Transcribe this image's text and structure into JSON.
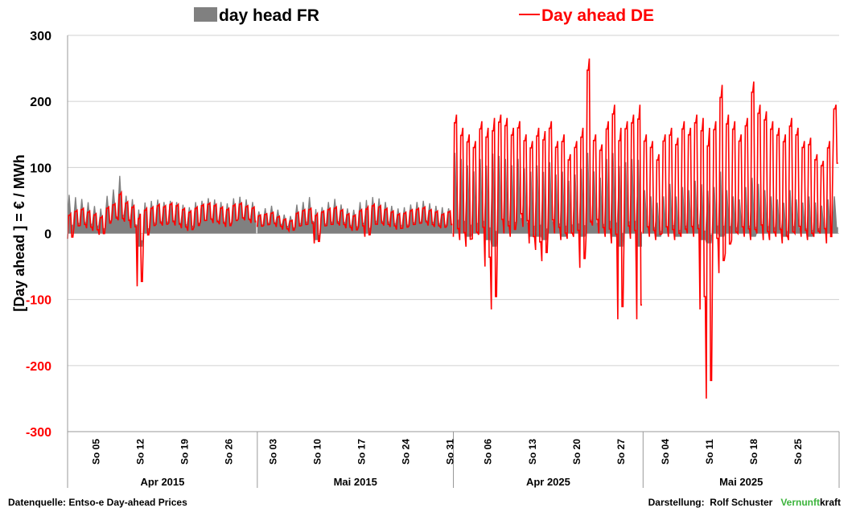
{
  "chart_data": {
    "type": "area+line",
    "ylabel": "[Day ahead ]  = € / MWh",
    "ylim": [
      -300,
      300
    ],
    "yticks": [
      300,
      200,
      100,
      0,
      -100,
      -200,
      -300
    ],
    "grid": true,
    "legend_position": "top",
    "series": [
      {
        "name": "day head FR",
        "kind": "area",
        "color": "#808080"
      },
      {
        "name": "Day ahead DE",
        "kind": "line",
        "color": "#ff0000"
      }
    ],
    "periods": [
      {
        "label": "Apr 2015",
        "days": 30,
        "weeks": [
          "So 05",
          "So 12",
          "So 19",
          "So 26"
        ],
        "first_sunday": 5
      },
      {
        "label": "Mai 2015",
        "days": 31,
        "weeks": [
          "So 03",
          "So 10",
          "So 17",
          "So 24",
          "So 31"
        ],
        "first_sunday": 3
      },
      {
        "label": "Apr 2025",
        "days": 30,
        "weeks": [
          "So 06",
          "So 13",
          "So 20",
          "So 27"
        ],
        "first_sunday": 6
      },
      {
        "label": "Mai 2025",
        "days": 31,
        "weeks": [
          "So 04",
          "So 11",
          "So 18",
          "So 25"
        ],
        "first_sunday": 4
      }
    ],
    "daily_points": {
      "Apr 2015": {
        "de_min": [
          -8,
          10,
          12,
          8,
          4,
          -2,
          14,
          22,
          20,
          18,
          8,
          -80,
          -5,
          10,
          14,
          12,
          16,
          12,
          8,
          4,
          10,
          18,
          20,
          16,
          14,
          10,
          18,
          22,
          20,
          16
        ],
        "de_max": [
          30,
          35,
          38,
          34,
          30,
          26,
          40,
          45,
          62,
          48,
          42,
          30,
          38,
          40,
          44,
          42,
          46,
          44,
          38,
          34,
          40,
          44,
          46,
          44,
          40,
          38,
          44,
          46,
          42,
          40
        ],
        "fr_min": [
          4,
          8,
          10,
          8,
          6,
          2,
          12,
          18,
          16,
          14,
          6,
          -20,
          0,
          10,
          12,
          12,
          14,
          10,
          8,
          6,
          10,
          14,
          16,
          14,
          12,
          10,
          14,
          18,
          16,
          14
        ],
        "fr_max": [
          62,
          58,
          55,
          50,
          44,
          40,
          60,
          70,
          92,
          60,
          55,
          40,
          50,
          52,
          54,
          50,
          52,
          50,
          46,
          42,
          50,
          52,
          56,
          54,
          50,
          48,
          56,
          58,
          54,
          50
        ]
      },
      "Mai 2015": {
        "de_min": [
          10,
          12,
          14,
          10,
          6,
          4,
          10,
          12,
          14,
          -15,
          10,
          12,
          14,
          12,
          8,
          4,
          10,
          -5,
          12,
          14,
          12,
          10,
          6,
          8,
          12,
          14,
          16,
          12,
          10,
          8,
          12
        ],
        "de_max": [
          28,
          30,
          32,
          26,
          22,
          20,
          32,
          36,
          38,
          30,
          34,
          38,
          40,
          36,
          30,
          28,
          36,
          40,
          44,
          42,
          38,
          34,
          30,
          32,
          36,
          38,
          40,
          36,
          34,
          30,
          34
        ],
        "fr_min": [
          10,
          12,
          12,
          10,
          8,
          6,
          10,
          12,
          12,
          -10,
          10,
          12,
          12,
          12,
          8,
          6,
          10,
          0,
          12,
          12,
          12,
          10,
          8,
          8,
          12,
          12,
          14,
          12,
          10,
          8,
          10
        ],
        "fr_max": [
          35,
          40,
          44,
          38,
          30,
          28,
          46,
          50,
          58,
          40,
          42,
          50,
          55,
          46,
          40,
          38,
          50,
          54,
          58,
          56,
          50,
          44,
          40,
          42,
          46,
          50,
          52,
          48,
          44,
          42,
          40
        ]
      },
      "Apr 2025": {
        "de_min": [
          -5,
          -10,
          -20,
          -8,
          -2,
          -50,
          -115,
          10,
          0,
          -5,
          20,
          10,
          -15,
          -25,
          -42,
          10,
          0,
          -10,
          -8,
          -5,
          -52,
          0,
          12,
          0,
          -5,
          -15,
          -130,
          0,
          -8,
          -130
        ],
        "de_max": [
          180,
          160,
          150,
          140,
          170,
          160,
          175,
          180,
          175,
          160,
          170,
          150,
          140,
          160,
          155,
          170,
          140,
          150,
          120,
          140,
          160,
          265,
          150,
          135,
          170,
          195,
          160,
          170,
          180,
          195
        ],
        "fr_min": [
          0,
          0,
          -5,
          0,
          0,
          -10,
          -20,
          0,
          0,
          0,
          5,
          0,
          -5,
          -5,
          -10,
          0,
          0,
          -5,
          0,
          0,
          -5,
          0,
          0,
          0,
          0,
          -5,
          -20,
          0,
          0,
          -20
        ],
        "fr_max": [
          130,
          120,
          110,
          100,
          120,
          110,
          130,
          125,
          120,
          110,
          120,
          105,
          100,
          110,
          100,
          115,
          95,
          100,
          85,
          95,
          105,
          130,
          100,
          90,
          120,
          130,
          110,
          115,
          120,
          120
        ]
      },
      "Mai 2025": {
        "de_min": [
          0,
          -5,
          -10,
          0,
          -5,
          -10,
          -5,
          0,
          -5,
          -115,
          -250,
          -20,
          -60,
          -30,
          -10,
          0,
          -5,
          -10,
          0,
          -10,
          -10,
          -5,
          -15,
          -10,
          0,
          -5,
          -10,
          -5,
          0,
          -15,
          100
        ],
        "de_max": [
          150,
          140,
          120,
          150,
          160,
          145,
          170,
          160,
          180,
          175,
          160,
          170,
          225,
          180,
          170,
          150,
          175,
          230,
          195,
          185,
          170,
          160,
          150,
          175,
          160,
          140,
          145,
          120,
          110,
          140,
          195
        ],
        "fr_min": [
          0,
          0,
          -5,
          0,
          0,
          -5,
          0,
          0,
          0,
          -10,
          -15,
          0,
          -5,
          0,
          0,
          0,
          0,
          -5,
          0,
          0,
          0,
          0,
          -5,
          0,
          0,
          0,
          -5,
          0,
          0,
          0,
          0
        ],
        "fr_max": [
          70,
          60,
          50,
          60,
          80,
          60,
          75,
          70,
          85,
          80,
          70,
          75,
          100,
          70,
          60,
          55,
          75,
          90,
          80,
          70,
          60,
          55,
          50,
          70,
          55,
          50,
          60,
          50,
          45,
          55,
          60
        ]
      }
    }
  },
  "legend": {
    "fr_label": "day head FR",
    "de_label": "Day ahead DE"
  },
  "footer": {
    "source": "Datenquelle: Entso-e  Day-ahead Prices",
    "credit_prefix": "Darstellung:  Rolf Schuster   ",
    "brand_green": "Vernunft",
    "brand_rest": "kraft"
  },
  "colors": {
    "fr_area": "#808080",
    "de_line": "#ff0000",
    "negative_tick": "#ff0000",
    "positive_tick": "#000000",
    "grid": "#d0d0d0",
    "brand_green": "#3cb43c"
  }
}
